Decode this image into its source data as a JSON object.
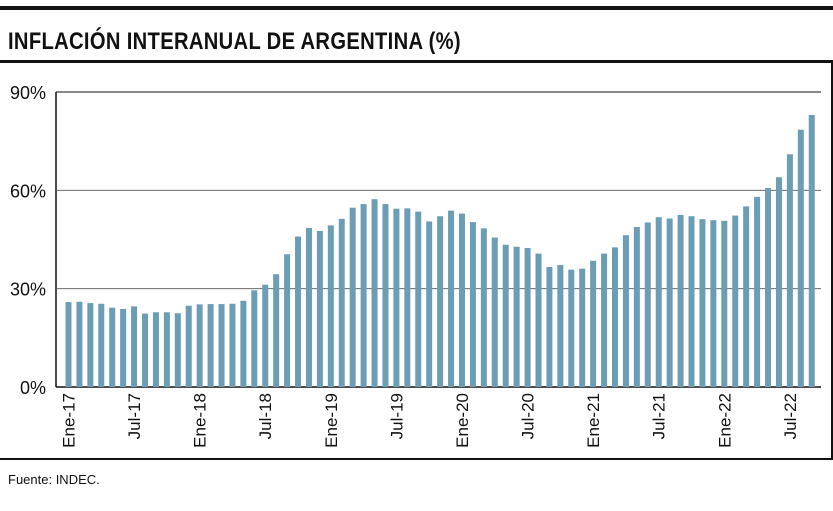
{
  "header": {
    "title": "INFLACIÓN INTERANUAL DE ARGENTINA (%)"
  },
  "footer": {
    "source": "Fuente: INDEC."
  },
  "chart_data": {
    "type": "bar",
    "title": "INFLACIÓN INTERANUAL DE ARGENTINA (%)",
    "xlabel": "",
    "ylabel": "",
    "ylim": [
      0,
      90
    ],
    "yticks": [
      0,
      30,
      60,
      90
    ],
    "ytick_labels": [
      "0%",
      "30%",
      "60%",
      "90%"
    ],
    "grid": "horizontal",
    "bar_color": "#6b9db5",
    "tick_labels": [
      {
        "index": 0,
        "label": "Ene-17"
      },
      {
        "index": 6,
        "label": "Jul-17"
      },
      {
        "index": 12,
        "label": "Ene-18"
      },
      {
        "index": 18,
        "label": "Jul-18"
      },
      {
        "index": 24,
        "label": "Ene-19"
      },
      {
        "index": 30,
        "label": "Jul-19"
      },
      {
        "index": 36,
        "label": "Ene-20"
      },
      {
        "index": 42,
        "label": "Jul-20"
      },
      {
        "index": 48,
        "label": "Ene-21"
      },
      {
        "index": 54,
        "label": "Jul-21"
      },
      {
        "index": 60,
        "label": "Ene-22"
      },
      {
        "index": 66,
        "label": "Jul-22"
      }
    ],
    "categories": [
      "2017-01",
      "2017-02",
      "2017-03",
      "2017-04",
      "2017-05",
      "2017-06",
      "2017-07",
      "2017-08",
      "2017-09",
      "2017-10",
      "2017-11",
      "2017-12",
      "2018-01",
      "2018-02",
      "2018-03",
      "2018-04",
      "2018-05",
      "2018-06",
      "2018-07",
      "2018-08",
      "2018-09",
      "2018-10",
      "2018-11",
      "2018-12",
      "2019-01",
      "2019-02",
      "2019-03",
      "2019-04",
      "2019-05",
      "2019-06",
      "2019-07",
      "2019-08",
      "2019-09",
      "2019-10",
      "2019-11",
      "2019-12",
      "2020-01",
      "2020-02",
      "2020-03",
      "2020-04",
      "2020-05",
      "2020-06",
      "2020-07",
      "2020-08",
      "2020-09",
      "2020-10",
      "2020-11",
      "2020-12",
      "2021-01",
      "2021-02",
      "2021-03",
      "2021-04",
      "2021-05",
      "2021-06",
      "2021-07",
      "2021-08",
      "2021-09",
      "2021-10",
      "2021-11",
      "2021-12",
      "2022-01",
      "2022-02",
      "2022-03",
      "2022-04",
      "2022-05",
      "2022-06",
      "2022-07",
      "2022-08",
      "2022-09"
    ],
    "values": [
      25.9,
      26.0,
      25.6,
      25.4,
      24.2,
      23.8,
      24.6,
      22.4,
      22.8,
      22.8,
      22.5,
      24.8,
      25.2,
      25.3,
      25.3,
      25.4,
      26.3,
      29.5,
      31.2,
      34.4,
      40.5,
      45.9,
      48.5,
      47.6,
      49.3,
      51.3,
      54.7,
      55.8,
      57.3,
      55.8,
      54.4,
      54.5,
      53.5,
      50.5,
      52.1,
      53.8,
      52.9,
      50.3,
      48.4,
      45.6,
      43.4,
      42.8,
      42.4,
      40.7,
      36.6,
      37.2,
      35.8,
      36.1,
      38.5,
      40.7,
      42.6,
      46.3,
      48.8,
      50.2,
      51.8,
      51.4,
      52.5,
      52.1,
      51.2,
      50.9,
      50.7,
      52.3,
      55.1,
      58.0,
      60.7,
      64.0,
      71.0,
      78.5,
      83.0
    ]
  }
}
